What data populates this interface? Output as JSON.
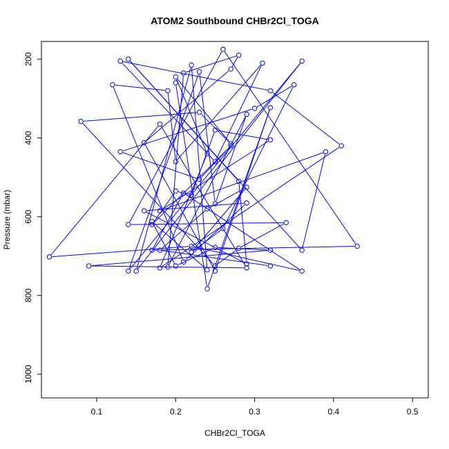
{
  "chart_data": {
    "type": "line",
    "title": "ATOM2 Southbound CHBr2Cl_TOGA",
    "xlabel": "CHBr2Cl_TOGA",
    "ylabel": "Pressure (mbar)",
    "xlim": [
      0.03,
      0.52
    ],
    "ylim": [
      1060,
      155
    ],
    "y_reversed": true,
    "grid": false,
    "x_ticks": [
      0.1,
      0.2,
      0.3,
      0.4,
      0.5
    ],
    "x_tick_labels": [
      "0.1",
      "0.2",
      "0.3",
      "0.4",
      "0.5"
    ],
    "y_ticks": [
      200,
      400,
      600,
      800,
      1000
    ],
    "y_tick_labels": [
      "200",
      "400",
      "600",
      "800",
      "1000"
    ],
    "series": [
      {
        "color": "#0000ff",
        "marker": "open-circle",
        "x": [
          0.32,
          0.18,
          0.24,
          0.29,
          0.22,
          0.26,
          0.35,
          0.3,
          0.13,
          0.23,
          0.27,
          0.17,
          0.2,
          0.22,
          0.25,
          0.32,
          0.18,
          0.39,
          0.36,
          0.14,
          0.28,
          0.29,
          0.16,
          0.29,
          0.21,
          0.12,
          0.19,
          0.2,
          0.31,
          0.25,
          0.13,
          0.32,
          0.41,
          0.18,
          0.24,
          0.2,
          0.27,
          0.23,
          0.08,
          0.25,
          0.28,
          0.34,
          0.14,
          0.26,
          0.43,
          0.17,
          0.21,
          0.36,
          0.22,
          0.04,
          0.18,
          0.29,
          0.09,
          0.32,
          0.25,
          0.2,
          0.17,
          0.24,
          0.22,
          0.15,
          0.36,
          0.14,
          0.23,
          0.25,
          0.29,
          0.19,
          0.21,
          0.28,
          0.27,
          0.16,
          0.25,
          0.32,
          0.24,
          0.2
        ],
        "y": [
          725,
          685,
          580,
          525,
          690,
          630,
          265,
          325,
          435,
          505,
          420,
          620,
          535,
          545,
          380,
          405,
          585,
          435,
          685,
          200,
          510,
          720,
          585,
          565,
          715,
          265,
          280,
          460,
          210,
          460,
          205,
          280,
          420,
          730,
          440,
          245,
          415,
          335,
          358,
          725,
          680,
          615,
          620,
          175,
          675,
          685,
          540,
          738,
          675,
          702,
          365,
          730,
          725,
          685,
          678,
          725,
          612,
          735,
          215,
          738,
          205,
          738,
          232,
          567,
          340,
          728,
          235,
          190,
          225,
          412,
          738,
          323,
          783,
          260
        ]
      }
    ]
  }
}
